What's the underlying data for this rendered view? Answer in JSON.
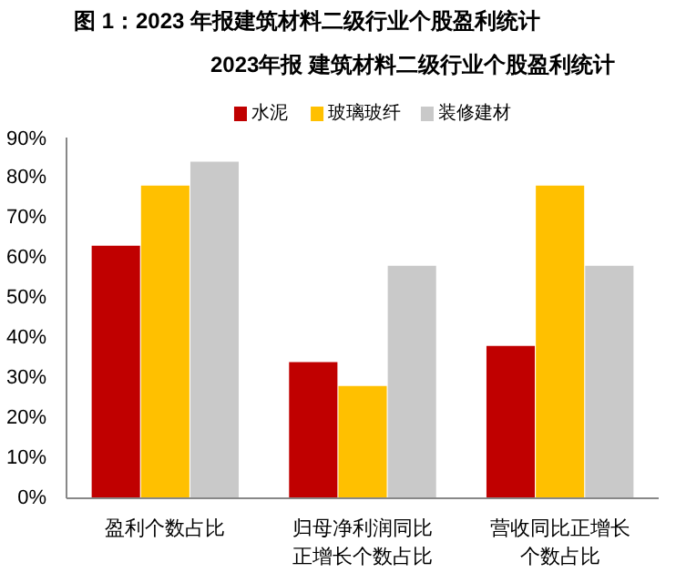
{
  "chart_data": {
    "type": "bar",
    "title": "图 1：2023 年报建筑材料二级行业个股盈利统计",
    "subtitle": "2023年报 建筑材料二级行业个股盈利统计",
    "categories": [
      "盈利个数占比",
      "归母净利润同比正增长个数占比",
      "营收同比正增长个数占比"
    ],
    "series": [
      {
        "name": "水泥",
        "color": "#c00000",
        "values": [
          63,
          34,
          38
        ]
      },
      {
        "name": "玻璃玻纤",
        "color": "#ffc000",
        "values": [
          78,
          28,
          78
        ]
      },
      {
        "name": "装修建材",
        "color": "#c9c9c9",
        "values": [
          84,
          58,
          58
        ]
      }
    ],
    "ylim": [
      0,
      90
    ],
    "yticks": [
      {
        "value": 0,
        "label": "0%"
      },
      {
        "value": 10,
        "label": "10%"
      },
      {
        "value": 20,
        "label": "20%"
      },
      {
        "value": 30,
        "label": "30%"
      },
      {
        "value": 40,
        "label": "40%"
      },
      {
        "value": 50,
        "label": "50%"
      },
      {
        "value": 60,
        "label": "60%"
      },
      {
        "value": 70,
        "label": "70%"
      },
      {
        "value": 80,
        "label": "80%"
      },
      {
        "value": 90,
        "label": "90%"
      }
    ],
    "grid": false,
    "legend": "top"
  }
}
